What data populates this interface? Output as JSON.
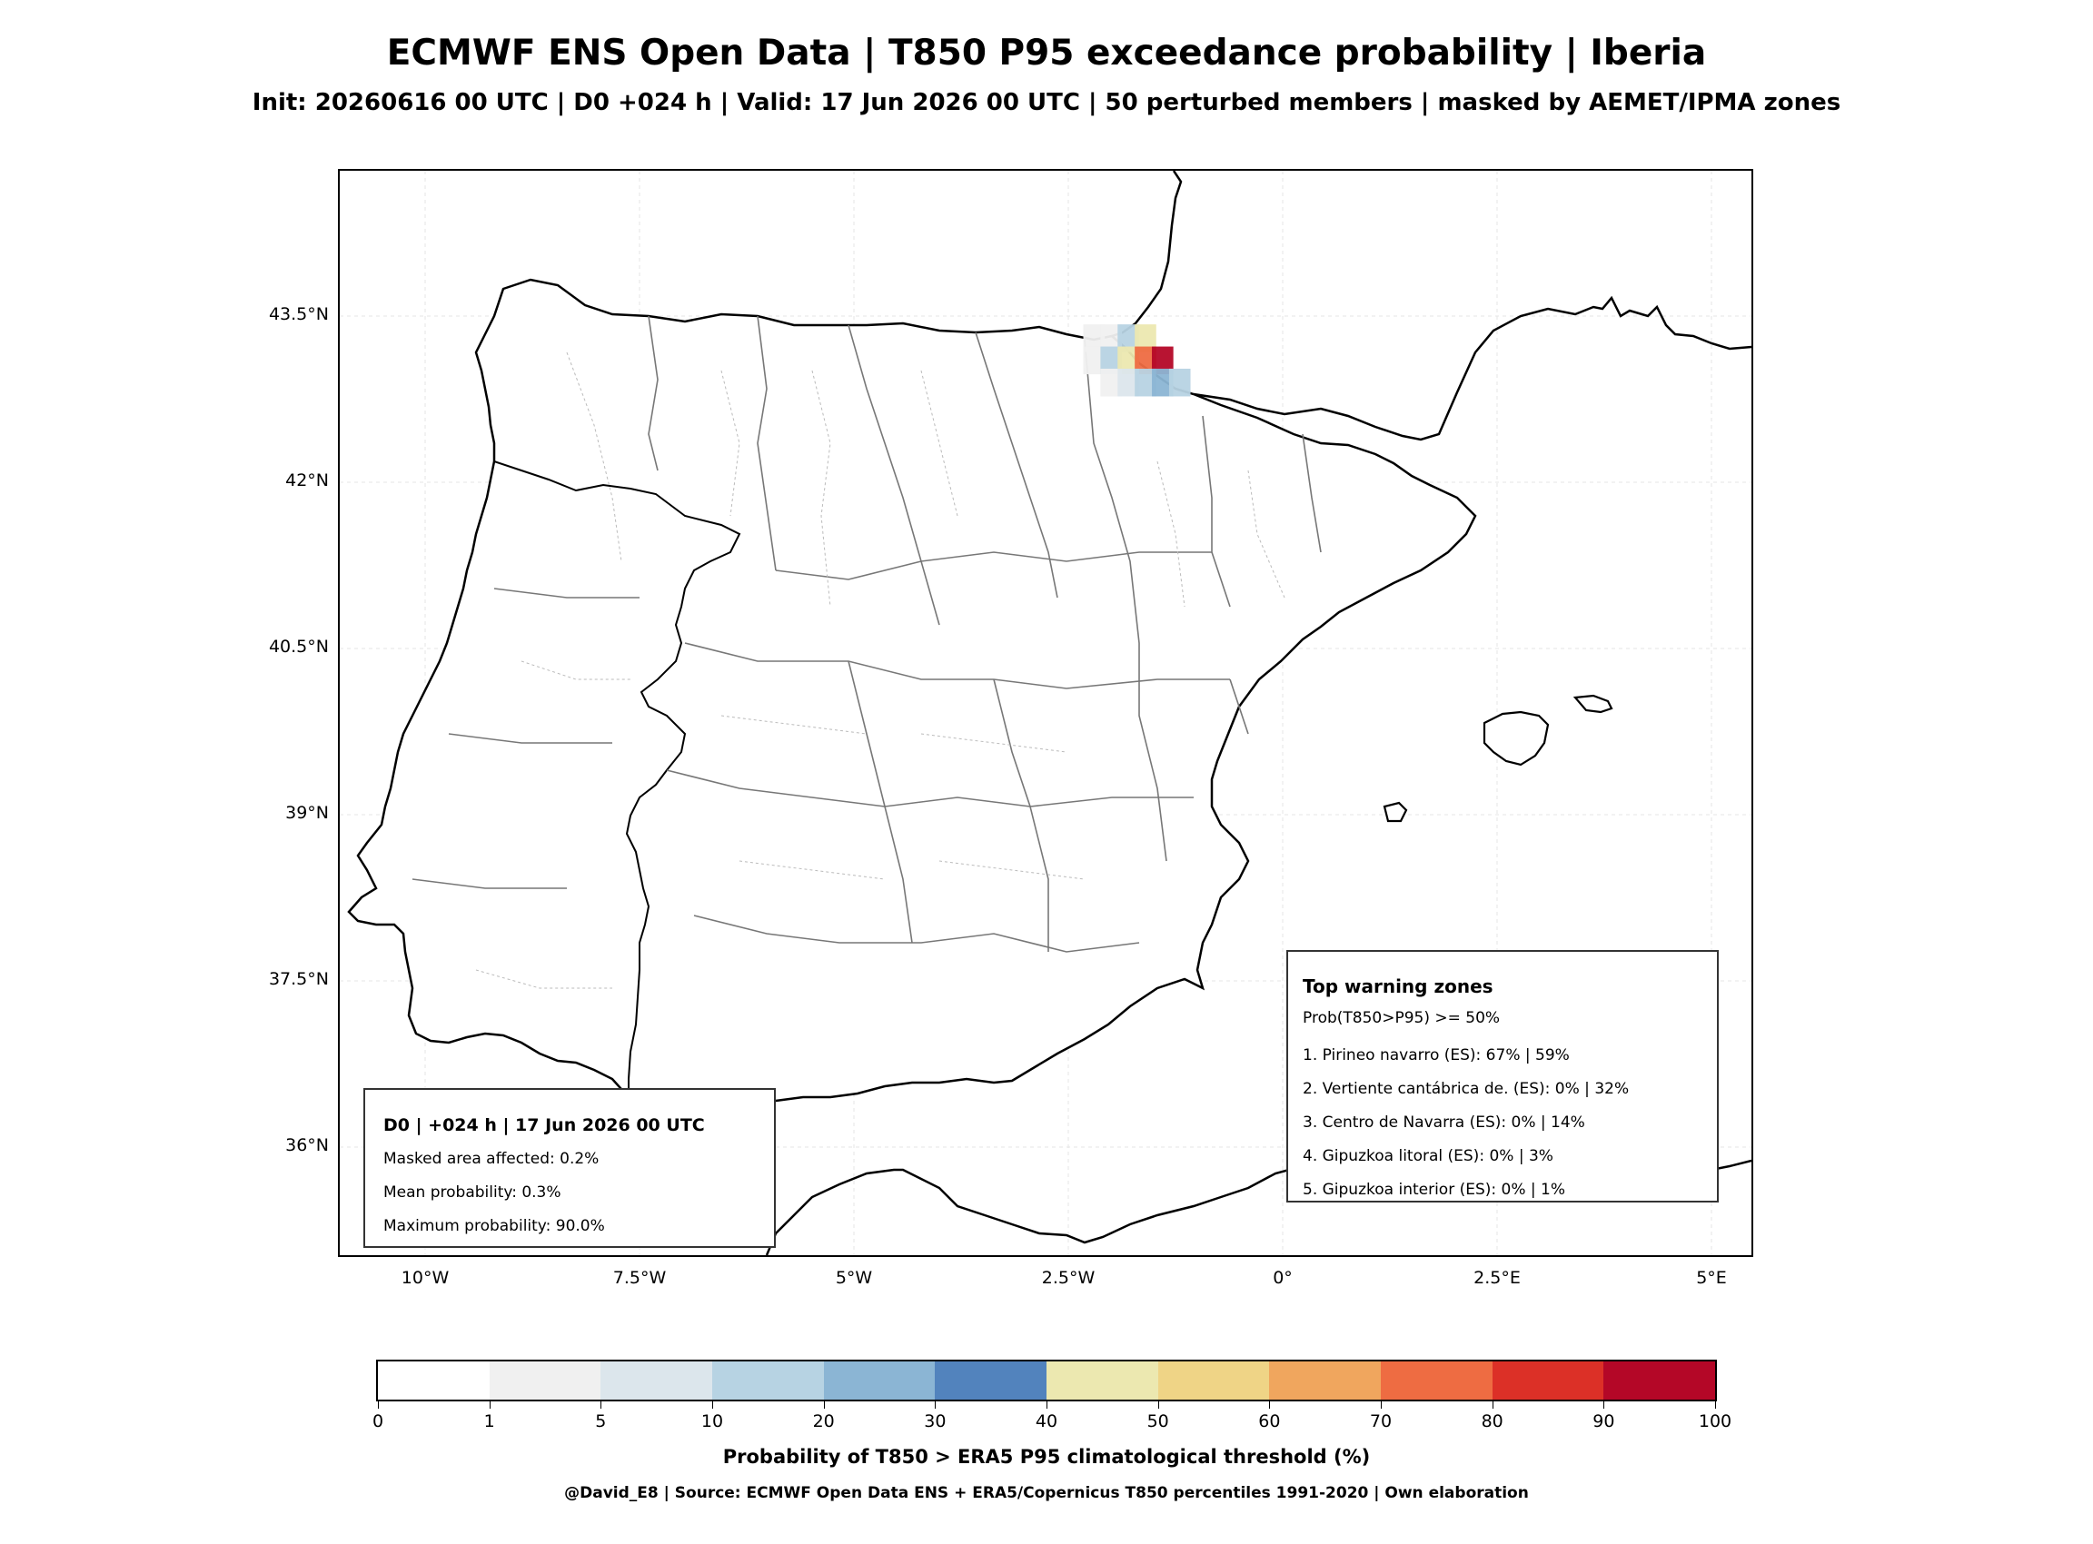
{
  "title": "ECMWF ENS Open Data | T850 P95 exceedance probability | Iberia",
  "subtitle": "Init: 20260616 00 UTC | D0 +024 h | Valid: 17 Jun 2026 00 UTC | 50 perturbed members | masked by AEMET/IPMA zones",
  "axes": {
    "lat_ticks": [
      "43.5°N",
      "42°N",
      "40.5°N",
      "39°N",
      "37.5°N",
      "36°N"
    ],
    "lon_ticks": [
      "10°W",
      "7.5°W",
      "5°W",
      "2.5°W",
      "0°",
      "2.5°E",
      "5°E"
    ]
  },
  "summary_box": {
    "header": "D0 | +024 h | 17 Jun 2026 00 UTC",
    "masked_area": "Masked area affected: 0.2%",
    "mean_probability": "Mean probability: 0.3%",
    "max_probability": "Maximum probability: 90.0%"
  },
  "warning_box": {
    "header": "Top warning zones",
    "criterion": "Prob(T850>P95) >= 50%",
    "zones": [
      "1. Pirineo navarro (ES): 67% | 59%",
      "2. Vertiente cantábrica de. (ES): 0% | 32%",
      "3. Centro de Navarra (ES): 0% | 14%",
      "4. Gipuzkoa litoral (ES): 0% | 3%",
      "5. Gipuzkoa interior (ES): 0% | 1%"
    ]
  },
  "colorbar": {
    "ticks": [
      "0",
      "1",
      "5",
      "10",
      "20",
      "30",
      "40",
      "50",
      "60",
      "70",
      "80",
      "90",
      "100"
    ],
    "colors": [
      "#ffffff",
      "#f0f0f0",
      "#dce6ec",
      "#b7d3e3",
      "#8bb5d4",
      "#5283bd",
      "#ece8b0",
      "#efd486",
      "#f0a65e",
      "#ee6c42",
      "#dc3027",
      "#b40727"
    ],
    "label": "Probability of T850 > ERA5 P95 climatological threshold (%)"
  },
  "credit": "@David_E8 | Source: ECMWF Open Data ENS + ERA5/Copernicus T850 percentiles 1991-2020 | Own elaboration",
  "probability_cells": [
    {
      "lon": -2.2,
      "lat": 43.3,
      "color": "#f0f0f0"
    },
    {
      "lon": -2.0,
      "lat": 43.3,
      "color": "#f0f0f0"
    },
    {
      "lon": -1.8,
      "lat": 43.3,
      "color": "#b7d3e3"
    },
    {
      "lon": -1.6,
      "lat": 43.3,
      "color": "#ece8b0"
    },
    {
      "lon": -2.2,
      "lat": 43.1,
      "color": "#f0f0f0"
    },
    {
      "lon": -2.0,
      "lat": 43.1,
      "color": "#b7d3e3"
    },
    {
      "lon": -1.8,
      "lat": 43.1,
      "color": "#ece8b0"
    },
    {
      "lon": -1.6,
      "lat": 43.1,
      "color": "#ee6c42"
    },
    {
      "lon": -1.4,
      "lat": 43.1,
      "color": "#b40727"
    },
    {
      "lon": -2.0,
      "lat": 42.9,
      "color": "#f0f0f0"
    },
    {
      "lon": -1.8,
      "lat": 42.9,
      "color": "#dce6ec"
    },
    {
      "lon": -1.6,
      "lat": 42.9,
      "color": "#b7d3e3"
    },
    {
      "lon": -1.4,
      "lat": 42.9,
      "color": "#8bb5d4"
    },
    {
      "lon": -1.2,
      "lat": 42.9,
      "color": "#b7d3e3"
    }
  ]
}
